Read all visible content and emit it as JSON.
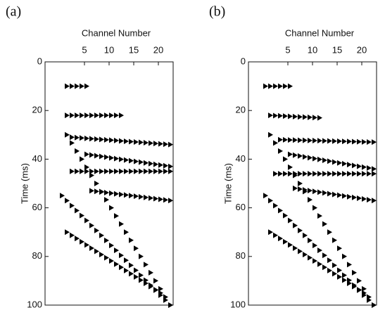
{
  "chart_data": [
    {
      "type": "wiggle",
      "label": "(a)",
      "xlabel": "Channel Number",
      "ylabel": "Time (ms)",
      "xlim": [
        -3,
        23
      ],
      "xticks": [
        5,
        10,
        15,
        20
      ],
      "ylim": [
        0,
        100
      ],
      "yticks": [
        0,
        20,
        40,
        60,
        80,
        100
      ],
      "color": "#000000",
      "series": [
        {
          "x": [
            1,
            5
          ],
          "values": [
            10,
            10
          ]
        },
        {
          "x": [
            1,
            12
          ],
          "values": [
            22,
            22
          ]
        },
        {
          "x": [
            2,
            22
          ],
          "values": [
            31,
            34
          ]
        },
        {
          "x": [
            5,
            22
          ],
          "values": [
            38,
            43
          ]
        },
        {
          "x": [
            2,
            22
          ],
          "values": [
            45,
            45
          ]
        },
        {
          "x": [
            6,
            22
          ],
          "values": [
            53,
            57
          ]
        },
        {
          "x": [
            1,
            22
          ],
          "values": [
            30,
            100
          ]
        },
        {
          "x": [
            0,
            22
          ],
          "values": [
            55,
            100
          ]
        },
        {
          "x": [
            1,
            20
          ],
          "values": [
            70,
            95
          ]
        }
      ]
    },
    {
      "type": "wiggle",
      "label": "(b)",
      "xlabel": "Channel Number",
      "ylabel": "Time (ms)",
      "xlim": [
        -3,
        23
      ],
      "xticks": [
        5,
        10,
        15,
        20
      ],
      "ylim": [
        0,
        100
      ],
      "yticks": [
        0,
        20,
        40,
        60,
        80,
        100
      ],
      "color": "#000000",
      "series": [
        {
          "x": [
            0,
            5
          ],
          "values": [
            10,
            10
          ]
        },
        {
          "x": [
            1,
            11
          ],
          "values": [
            22,
            23
          ]
        },
        {
          "x": [
            3,
            22
          ],
          "values": [
            32,
            33
          ]
        },
        {
          "x": [
            5,
            22
          ],
          "values": [
            38,
            44
          ]
        },
        {
          "x": [
            2,
            22
          ],
          "values": [
            46,
            46
          ]
        },
        {
          "x": [
            6,
            22
          ],
          "values": [
            52,
            57
          ]
        },
        {
          "x": [
            1,
            22
          ],
          "values": [
            30,
            100
          ]
        },
        {
          "x": [
            0,
            22
          ],
          "values": [
            55,
            100
          ]
        },
        {
          "x": [
            1,
            20
          ],
          "values": [
            70,
            95
          ]
        }
      ]
    }
  ]
}
